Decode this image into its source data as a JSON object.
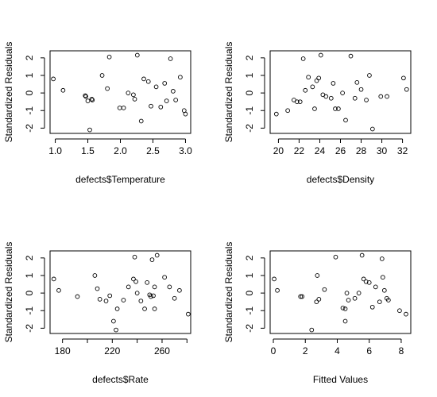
{
  "chart_data": [
    {
      "type": "scatter",
      "xlabel": "defects$Temperature",
      "ylabel": "Standardized Residuals",
      "xlim": [
        0.92,
        3.08
      ],
      "ylim": [
        -2.3,
        2.4
      ],
      "xticks": [
        1.0,
        1.5,
        2.0,
        2.5,
        3.0
      ],
      "xtick_labels": [
        "1.0",
        "1.5",
        "2.0",
        "2.5",
        "3.0"
      ],
      "yticks": [
        -2,
        -1,
        0,
        1,
        2
      ],
      "ytick_labels": [
        "-2",
        "-1",
        "0",
        "1",
        "2"
      ],
      "x": [
        0.97,
        1.12,
        1.46,
        1.47,
        1.5,
        1.53,
        1.56,
        1.57,
        1.72,
        1.8,
        1.83,
        1.99,
        2.05,
        2.12,
        2.2,
        2.22,
        2.26,
        2.32,
        2.36,
        2.43,
        2.47,
        2.55,
        2.62,
        2.68,
        2.71,
        2.77,
        2.81,
        2.85,
        2.92,
        2.98,
        3.0
      ],
      "y": [
        0.8,
        0.15,
        -0.15,
        -0.2,
        -0.45,
        -2.1,
        -0.35,
        -0.4,
        1.0,
        0.25,
        2.05,
        -0.85,
        -0.85,
        0.0,
        -0.1,
        -0.35,
        2.15,
        -1.6,
        0.8,
        0.65,
        -0.75,
        0.35,
        -0.8,
        0.55,
        -0.45,
        1.95,
        0.1,
        -0.4,
        0.9,
        -1.0,
        -1.2
      ]
    },
    {
      "type": "scatter",
      "xlabel": "defects$Density",
      "ylabel": "Standardized Residuals",
      "xlim": [
        19.2,
        32.8
      ],
      "ylim": [
        -2.3,
        2.4
      ],
      "xticks": [
        20,
        22,
        24,
        26,
        28,
        30,
        32
      ],
      "xtick_labels": [
        "20",
        "22",
        "24",
        "26",
        "28",
        "30",
        "32"
      ],
      "yticks": [
        -2,
        -1,
        0,
        1,
        2
      ],
      "ytick_labels": [
        "-2",
        "-1",
        "0",
        "1",
        "2"
      ],
      "x": [
        19.8,
        20.9,
        21.5,
        21.8,
        22.1,
        22.4,
        22.6,
        22.9,
        23.3,
        23.5,
        23.7,
        23.9,
        24.1,
        24.3,
        24.6,
        25.1,
        25.3,
        25.5,
        25.8,
        26.2,
        26.5,
        27.0,
        27.4,
        27.6,
        28.0,
        28.5,
        28.8,
        29.1,
        29.9,
        30.5,
        32.1,
        32.4
      ],
      "y": [
        -1.2,
        -1.0,
        -0.4,
        -0.5,
        -0.5,
        1.95,
        0.15,
        0.9,
        0.35,
        -0.9,
        0.7,
        0.85,
        2.15,
        -0.1,
        -0.2,
        -0.3,
        0.55,
        -0.9,
        -0.9,
        0.0,
        -1.55,
        2.1,
        -0.3,
        0.6,
        0.2,
        -0.4,
        1.0,
        -2.05,
        -0.2,
        -0.2,
        0.85,
        0.2
      ]
    },
    {
      "type": "scatter",
      "xlabel": "defects$Rate",
      "ylabel": "Standardized Residuals",
      "xlim": [
        170,
        283
      ],
      "ylim": [
        -2.3,
        2.4
      ],
      "xticks": [
        180,
        200,
        220,
        240,
        260,
        280
      ],
      "xtick_labels": [
        "180",
        "",
        "220",
        "",
        "260",
        ""
      ],
      "yticks": [
        -2,
        -1,
        0,
        1,
        2
      ],
      "ytick_labels": [
        "-2",
        "-1",
        "0",
        "1",
        "2"
      ],
      "x": [
        173,
        177,
        192,
        206,
        208,
        210,
        215,
        218,
        221,
        223,
        224,
        229,
        233,
        237,
        238,
        239,
        240,
        243,
        246,
        248,
        250,
        251,
        252,
        253,
        254,
        254,
        256,
        262,
        266,
        270,
        274,
        281
      ],
      "y": [
        0.8,
        0.15,
        -0.2,
        1.0,
        0.25,
        -0.35,
        -0.45,
        -0.15,
        -1.6,
        -2.1,
        -0.9,
        -0.4,
        0.35,
        0.8,
        2.05,
        0.65,
        0.0,
        -0.45,
        -0.9,
        0.6,
        -0.1,
        -0.2,
        1.9,
        -0.15,
        0.35,
        -0.9,
        2.15,
        0.9,
        0.35,
        -0.3,
        0.15,
        -1.2
      ]
    },
    {
      "type": "scatter",
      "xlabel": "Fitted Values",
      "ylabel": "Standardized Residuals",
      "xlim": [
        -0.2,
        8.6
      ],
      "ylim": [
        -2.3,
        2.4
      ],
      "xticks": [
        0,
        2,
        4,
        6,
        8
      ],
      "xtick_labels": [
        "0",
        "2",
        "4",
        "6",
        "8"
      ],
      "yticks": [
        -2,
        -1,
        0,
        1,
        2
      ],
      "ytick_labels": [
        "-2",
        "-1",
        "0",
        "1",
        "2"
      ],
      "x": [
        0.05,
        0.25,
        1.7,
        1.8,
        2.4,
        2.7,
        2.75,
        2.85,
        3.2,
        3.9,
        4.35,
        4.5,
        4.5,
        4.6,
        4.7,
        5.1,
        5.35,
        5.55,
        5.65,
        5.8,
        6.0,
        6.2,
        6.4,
        6.65,
        6.8,
        6.85,
        6.95,
        7.1,
        7.2,
        7.9,
        8.3
      ],
      "y": [
        0.8,
        0.15,
        -0.2,
        -0.2,
        -2.1,
        -0.5,
        1.0,
        -0.35,
        0.2,
        2.05,
        -0.85,
        -1.6,
        -0.9,
        0.0,
        -0.4,
        -0.3,
        0.0,
        2.15,
        0.8,
        0.65,
        0.6,
        -0.8,
        0.35,
        -0.5,
        1.95,
        0.9,
        0.15,
        -0.3,
        -0.4,
        -1.0,
        -1.2
      ]
    }
  ]
}
